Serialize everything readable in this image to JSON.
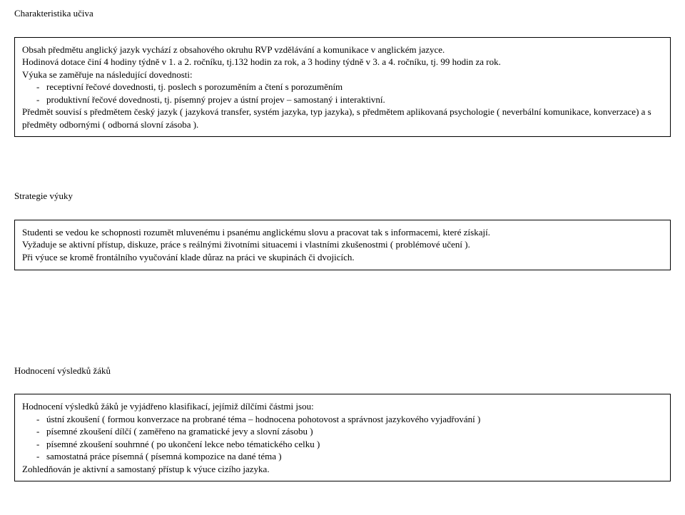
{
  "section1": {
    "title": "Charakteristika učiva",
    "p1": "Obsah předmětu anglický jazyk vychází z obsahového okruhu RVP vzdělávání a komunikace v anglickém jazyce.",
    "p2": "Hodinová dotace činí 4 hodiny týdně v 1. a 2. ročníku, tj.132 hodin za rok, a 3 hodiny týdně v 3. a 4. ročníku, tj. 99 hodin za rok.",
    "p3_indent": " Výuka se zaměřuje na následující dovednosti:",
    "li1": "receptivní řečové dovednosti, tj. poslech s porozuměním a čtení s porozuměním",
    "li2": "produktivní řečové dovednosti, tj. písemný projev a ústní projev – samostaný i interaktivní.",
    "p4": "Předmět souvisí s předmětem český jazyk ( jazyková transfer, systém jazyka, typ jazyka), s předmětem aplikovaná psychologie ( neverbální komunikace, konverzace) a s předměty odbornými ( odborná slovní zásoba )."
  },
  "section2": {
    "title": "Strategie výuky",
    "p1": "Studenti se vedou ke schopnosti rozumět mluvenému i psanému anglickému slovu a pracovat tak s informacemi, které získají.",
    "p2": "Vyžaduje se aktivní přístup, diskuze, práce s reálnými životními situacemi i vlastními zkušenostmi ( problémové učení ).",
    "p3": " Při výuce se kromě frontálního vyučování klade důraz na práci ve skupinách či dvojicích."
  },
  "section3": {
    "title": "Hodnocení výsledků žáků",
    "p1": "Hodnocení výsledků žáků je vyjádřeno klasifikací, jejímiž dílčími částmi jsou:",
    "li1": "ústní zkoušení ( formou konverzace na probrané téma – hodnocena pohotovost a správnost jazykového vyjadřování )",
    "li2": "písemné zkoušení dílčí ( zaměřeno na gramatické jevy a slovní zásobu )",
    "li3": "písemné zkoušení souhrnné ( po ukončení lekce nebo tématického celku )",
    "li4": "samostatná práce písemná ( písemná kompozice na dané téma )",
    "p2": "Zohledňován je aktivní a samostaný přístup k výuce cizího jazyka."
  }
}
